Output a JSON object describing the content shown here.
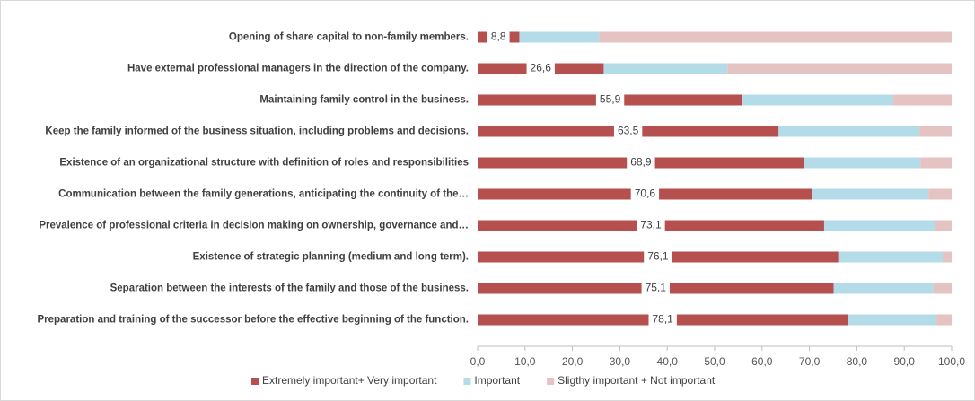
{
  "chart_data": {
    "type": "stacked-bar-horizontal",
    "categories": [
      "Opening of share capital to non-family members.",
      "Have external professional managers in the direction of the company.",
      "Maintaining family control in the business.",
      "Keep the family informed of the business situation, including problems and decisions.",
      "Existence of an organizational structure with definition of roles and responsibilities",
      "Communication between the family generations, anticipating the continuity of the…",
      "Prevalence of professional criteria in decision making on ownership, governance and…",
      "Existence of strategic planning (medium and long term).",
      "Separation between the interests of the family and those of the business.",
      "Preparation and training of the successor before the effective beginning of the function."
    ],
    "series": [
      {
        "name": "Extremely important+ Very important",
        "color": "#b5504e",
        "values": [
          8.8,
          26.6,
          55.9,
          63.5,
          68.9,
          70.6,
          73.1,
          76.1,
          75.1,
          78.1
        ],
        "value_labels": [
          "8,8",
          "26,6",
          "55,9",
          "63,5",
          "68,9",
          "70,6",
          "73,1",
          "76,1",
          "75,1",
          "78,1"
        ]
      },
      {
        "name": "Important",
        "color": "#b4dce8",
        "values": [
          16.8,
          26.1,
          31.8,
          29.7,
          24.5,
          24.5,
          23.3,
          22.0,
          21.1,
          18.7
        ]
      },
      {
        "name": "Sligthy important + Not important",
        "color": "#e6c3c3",
        "values": [
          74.4,
          47.3,
          12.3,
          6.8,
          6.6,
          4.9,
          3.6,
          1.9,
          3.8,
          3.2
        ]
      }
    ],
    "xlim": [
      0,
      100
    ],
    "xticks": [
      {
        "value": 0,
        "label": "0,0"
      },
      {
        "value": 10,
        "label": "10,0"
      },
      {
        "value": 20,
        "label": "20,0"
      },
      {
        "value": 30,
        "label": "30,0"
      },
      {
        "value": 40,
        "label": "40,0"
      },
      {
        "value": 50,
        "label": "50,0"
      },
      {
        "value": 60,
        "label": "60,0"
      },
      {
        "value": 70,
        "label": "70,0"
      },
      {
        "value": 80,
        "label": "80,0"
      },
      {
        "value": 90,
        "label": "90,0"
      },
      {
        "value": 100,
        "label": "100,0"
      }
    ],
    "grid": false,
    "legend": "bottom"
  }
}
